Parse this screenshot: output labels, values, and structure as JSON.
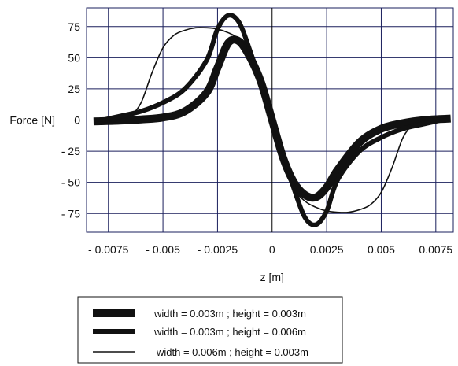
{
  "chart_data": {
    "type": "line",
    "xlabel": "z [m]",
    "ylabel": "Force  [N]",
    "xlim": [
      -0.0085,
      0.0083
    ],
    "ylim": [
      -90,
      90
    ],
    "grid": true,
    "legend_position": "bottom",
    "x_ticks": [
      {
        "value": -0.0075,
        "label": "- 0.0075"
      },
      {
        "value": -0.005,
        "label": "- 0.005"
      },
      {
        "value": -0.0025,
        "label": "- 0.0025"
      },
      {
        "value": 0,
        "label": "0"
      },
      {
        "value": 0.0025,
        "label": "0.0025"
      },
      {
        "value": 0.005,
        "label": "0.005"
      },
      {
        "value": 0.0075,
        "label": "0.0075"
      }
    ],
    "y_ticks": [
      {
        "value": 75,
        "label": "75"
      },
      {
        "value": 50,
        "label": "50"
      },
      {
        "value": 25,
        "label": "25"
      },
      {
        "value": 0,
        "label": "0"
      },
      {
        "value": -25,
        "label": "- 25"
      },
      {
        "value": -50,
        "label": "- 50"
      },
      {
        "value": -75,
        "label": "- 75"
      }
    ],
    "series": [
      {
        "name": "width = 0.003m ; height = 0.003m",
        "x": [
          -0.008,
          -0.007,
          -0.006,
          -0.005,
          -0.004,
          -0.003,
          -0.0025,
          -0.002,
          -0.0015,
          -0.001,
          -0.0005,
          0,
          0.0005,
          0.001,
          0.0015,
          0.002,
          0.0025,
          0.003,
          0.004,
          0.005,
          0.006,
          0.007,
          0.008
        ],
        "y": [
          -1,
          -0.5,
          0.5,
          2,
          7,
          22,
          42,
          62,
          63,
          50,
          30,
          0,
          -30,
          -50,
          -60,
          -62,
          -54,
          -40,
          -18,
          -7,
          -2.5,
          0,
          1
        ],
        "color": "#111111"
      },
      {
        "name": "width = 0.003m ; height = 0.006m",
        "x": [
          -0.008,
          -0.007,
          -0.006,
          -0.005,
          -0.004,
          -0.003,
          -0.0025,
          -0.002,
          -0.0015,
          -0.001,
          -0.0005,
          0,
          0.0005,
          0.001,
          0.0015,
          0.002,
          0.0025,
          0.003,
          0.004,
          0.005,
          0.006,
          0.007,
          0.008
        ],
        "y": [
          -1,
          3,
          7,
          14,
          25,
          48,
          73,
          84,
          78,
          55,
          28,
          0,
          -28,
          -55,
          -78,
          -84,
          -73,
          -48,
          -25,
          -14,
          -7,
          -3,
          1
        ],
        "color": "#111111"
      },
      {
        "name": "width = 0.006m ; height = 0.003m",
        "x": [
          -0.008,
          -0.007,
          -0.0065,
          -0.006,
          -0.0055,
          -0.005,
          -0.0045,
          -0.004,
          -0.0035,
          -0.003,
          -0.0025,
          -0.002,
          -0.0015,
          -0.001,
          -0.0005,
          0,
          0.0005,
          0.001,
          0.0015,
          0.002,
          0.0025,
          0.003,
          0.0035,
          0.004,
          0.0045,
          0.005,
          0.0055,
          0.006,
          0.0065,
          0.007,
          0.008
        ],
        "y": [
          -2,
          0,
          3,
          14,
          38,
          58,
          68,
          72,
          74,
          74,
          73,
          70,
          65,
          55,
          33,
          0,
          -33,
          -55,
          -65,
          -70,
          -73,
          -74,
          -74,
          -72,
          -68,
          -58,
          -38,
          -14,
          -3,
          0,
          2
        ],
        "color": "#111111"
      }
    ]
  }
}
